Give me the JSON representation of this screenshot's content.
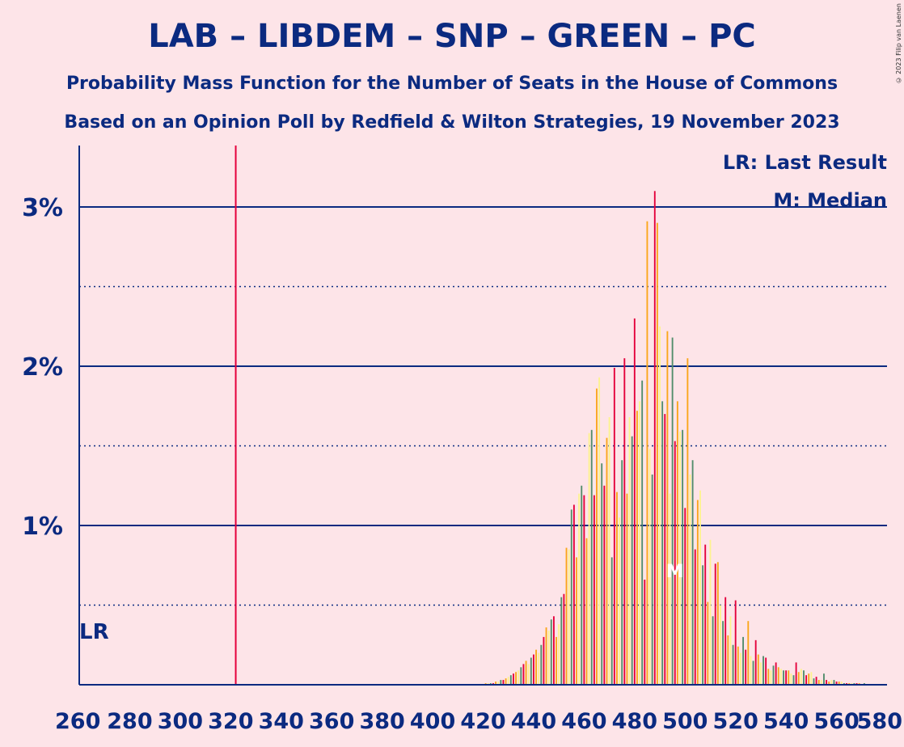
{
  "header": {
    "title": "LAB – LIBDEM – SNP – GREEN – PC",
    "subtitle_1": "Probability Mass Function for the Number of Seats in the House of Commons",
    "subtitle_2": "Based on an Opinion Poll by Redfield & Wilton Strategies, 19 November 2023",
    "copyright": "© 2023 Filip van Laenen"
  },
  "chart_data": {
    "type": "bar",
    "xlabel": "",
    "ylabel": "",
    "xlim": [
      260,
      580
    ],
    "ylim": [
      0,
      0.033
    ],
    "y_ticks": [
      {
        "value": 0.01,
        "label": "1%"
      },
      {
        "value": 0.02,
        "label": "2%"
      },
      {
        "value": 0.03,
        "label": "3%"
      }
    ],
    "y_minor_gridlines": [
      0.005,
      0.015,
      0.025
    ],
    "x_ticks": [
      260,
      280,
      300,
      320,
      340,
      360,
      380,
      400,
      420,
      440,
      460,
      480,
      500,
      520,
      540,
      560,
      580
    ],
    "last_result": {
      "seats": 322,
      "label": "LR"
    },
    "median": {
      "seats": 496,
      "label": "M"
    },
    "legend": {
      "last_result": "LR: Last Result",
      "median": "M: Median"
    },
    "series_colors": [
      "#e4003b",
      "#faa61a",
      "#fdf38e",
      "#528d6b"
    ],
    "accent_color": "#0b2a80",
    "lr_line_color": "#e4003b",
    "x_start": 420,
    "values": [
      0.0,
      0.0001,
      0.0001,
      0.0001,
      0.0001,
      0.0002,
      0.0002,
      0.0003,
      0.0003,
      0.0004,
      0.0005,
      0.0006,
      0.0007,
      0.0008,
      0.0009,
      0.0011,
      0.0013,
      0.0015,
      0.0013,
      0.0017,
      0.0019,
      0.0022,
      0.002,
      0.0025,
      0.003,
      0.0036,
      0.0034,
      0.0041,
      0.0043,
      0.003,
      0.0038,
      0.0055,
      0.0057,
      0.0086,
      0.0085,
      0.011,
      0.0113,
      0.008,
      0.012,
      0.0125,
      0.0119,
      0.0092,
      0.0158,
      0.016,
      0.0119,
      0.0186,
      0.0193,
      0.0139,
      0.0125,
      0.0155,
      0.0168,
      0.008,
      0.0199,
      0.0121,
      0.0105,
      0.0141,
      0.0205,
      0.012,
      0.0168,
      0.0156,
      0.023,
      0.0172,
      0.0178,
      0.0191,
      0.0066,
      0.0291,
      0.0148,
      0.0132,
      0.031,
      0.029,
      0.0225,
      0.0178,
      0.017,
      0.0222,
      0.012,
      0.0218,
      0.0153,
      0.0178,
      0.0159,
      0.016,
      0.0111,
      0.0205,
      0.0132,
      0.0141,
      0.0085,
      0.0116,
      0.0122,
      0.0075,
      0.0088,
      0.0052,
      0.0091,
      0.0043,
      0.0076,
      0.0077,
      0.005,
      0.004,
      0.0055,
      0.0031,
      0.0043,
      0.0025,
      0.0053,
      0.0024,
      0.002,
      0.003,
      0.0022,
      0.004,
      0.0018,
      0.0015,
      0.0028,
      0.0019,
      0.0014,
      0.0018,
      0.0017,
      0.001,
      0.0009,
      0.0012,
      0.0014,
      0.0011,
      0.001,
      0.0009,
      0.0009,
      0.0009,
      0.0007,
      0.0006,
      0.0014,
      0.0008,
      0.001,
      0.0009,
      0.0006,
      0.0007,
      0.0008,
      0.0004,
      0.0005,
      0.0003,
      0.0003,
      0.0007,
      0.0003,
      0.0002,
      0.0003,
      0.0003,
      0.0002,
      0.0002,
      0.0002,
      0.0001,
      0.0001,
      0.0001,
      0.0001,
      0.0001,
      0.0001,
      0.0001,
      0.0,
      0.0001,
      0.0,
      0.0,
      0.0,
      0.0
    ]
  }
}
